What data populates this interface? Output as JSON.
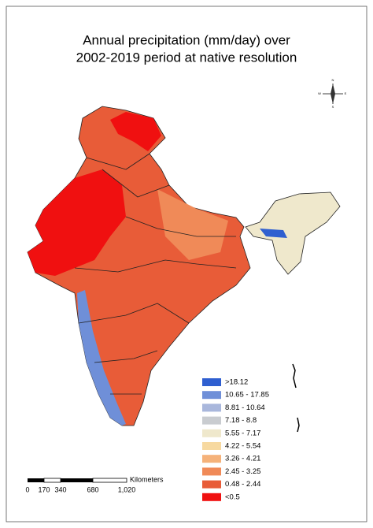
{
  "title": [
    "Annual precipitation (mm/day) over",
    "2002-2019 period at native resolution"
  ],
  "legend": {
    "items": [
      {
        "label": ">18.12",
        "color": "#2f5fd0"
      },
      {
        "label": "10.65 - 17.85",
        "color": "#6f8fd8"
      },
      {
        "label": "8.81 - 10.64",
        "color": "#a9b7dc"
      },
      {
        "label": "7.18 - 8.8",
        "color": "#c9ccd0"
      },
      {
        "label": "5.55 - 7.17",
        "color": "#efe8cc"
      },
      {
        "label": "4.22 - 5.54",
        "color": "#f7d9a0"
      },
      {
        "label": "3.26 - 4.21",
        "color": "#f5b27a"
      },
      {
        "label": "2.45 - 3.25",
        "color": "#f08a58"
      },
      {
        "label": "0.48 - 2.44",
        "color": "#e85c38"
      },
      {
        "label": "<0.5",
        "color": "#f01010"
      }
    ]
  },
  "scale_bar": {
    "unit": "Kilometers",
    "labels": [
      "0",
      "170",
      "340",
      "680",
      "1,020"
    ]
  },
  "compass": {
    "north": "N",
    "south": "S",
    "east": "E",
    "west": "W"
  }
}
